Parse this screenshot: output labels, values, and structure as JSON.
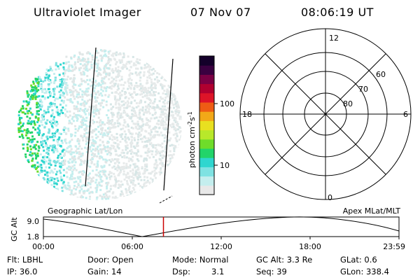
{
  "header": {
    "title": "Ultraviolet Imager",
    "date": "07 Nov 07",
    "time": "08:06:19 UT"
  },
  "colorbar": {
    "unit_label": "photon cm",
    "unit_sup1": "-2",
    "unit_mid": "s",
    "unit_sup2": "-1",
    "ticks": [
      {
        "label": "100",
        "value": 100
      },
      {
        "label": "10",
        "value": 10
      }
    ],
    "colors_low_to_high": [
      "#e8e8e8",
      "#c4eeee",
      "#7fe2e2",
      "#2fd6cf",
      "#22d46a",
      "#6fdc2a",
      "#b8e82a",
      "#e8e020",
      "#f2a818",
      "#ee5c14",
      "#dd1428",
      "#b00030",
      "#7a0044",
      "#3a0040",
      "#14002a"
    ]
  },
  "polar_grid": {
    "mlt_labels": [
      "12",
      "6",
      "0",
      "18"
    ],
    "lat_labels": [
      "60",
      "70",
      "80"
    ]
  },
  "timeline": {
    "label_left": "Geographic Lat/Lon",
    "label_right": "Apex MLat/MLT",
    "axis_title": "GC Alt",
    "y_ticks": [
      "9.0",
      "1.8"
    ],
    "x_ticks": [
      "00:00",
      "06:00",
      "12:00",
      "18:00",
      "23:59"
    ],
    "marker_time": "08:06",
    "marker_color": "#cc0000"
  },
  "footer": {
    "row1": {
      "filter": "Flt: LBHL",
      "door": "Door: Open",
      "mode": "Mode: Normal",
      "gc_alt": "GC Alt: 3.3 Re",
      "glat": "GLat:   0.6"
    },
    "row2": {
      "ip": "IP: 36.0",
      "gain": "Gain: 14",
      "dsp_label": "Dsp:",
      "dsp_value": "3.1",
      "seq": "Seq: 39",
      "glon": "GLon: 338.4"
    }
  }
}
